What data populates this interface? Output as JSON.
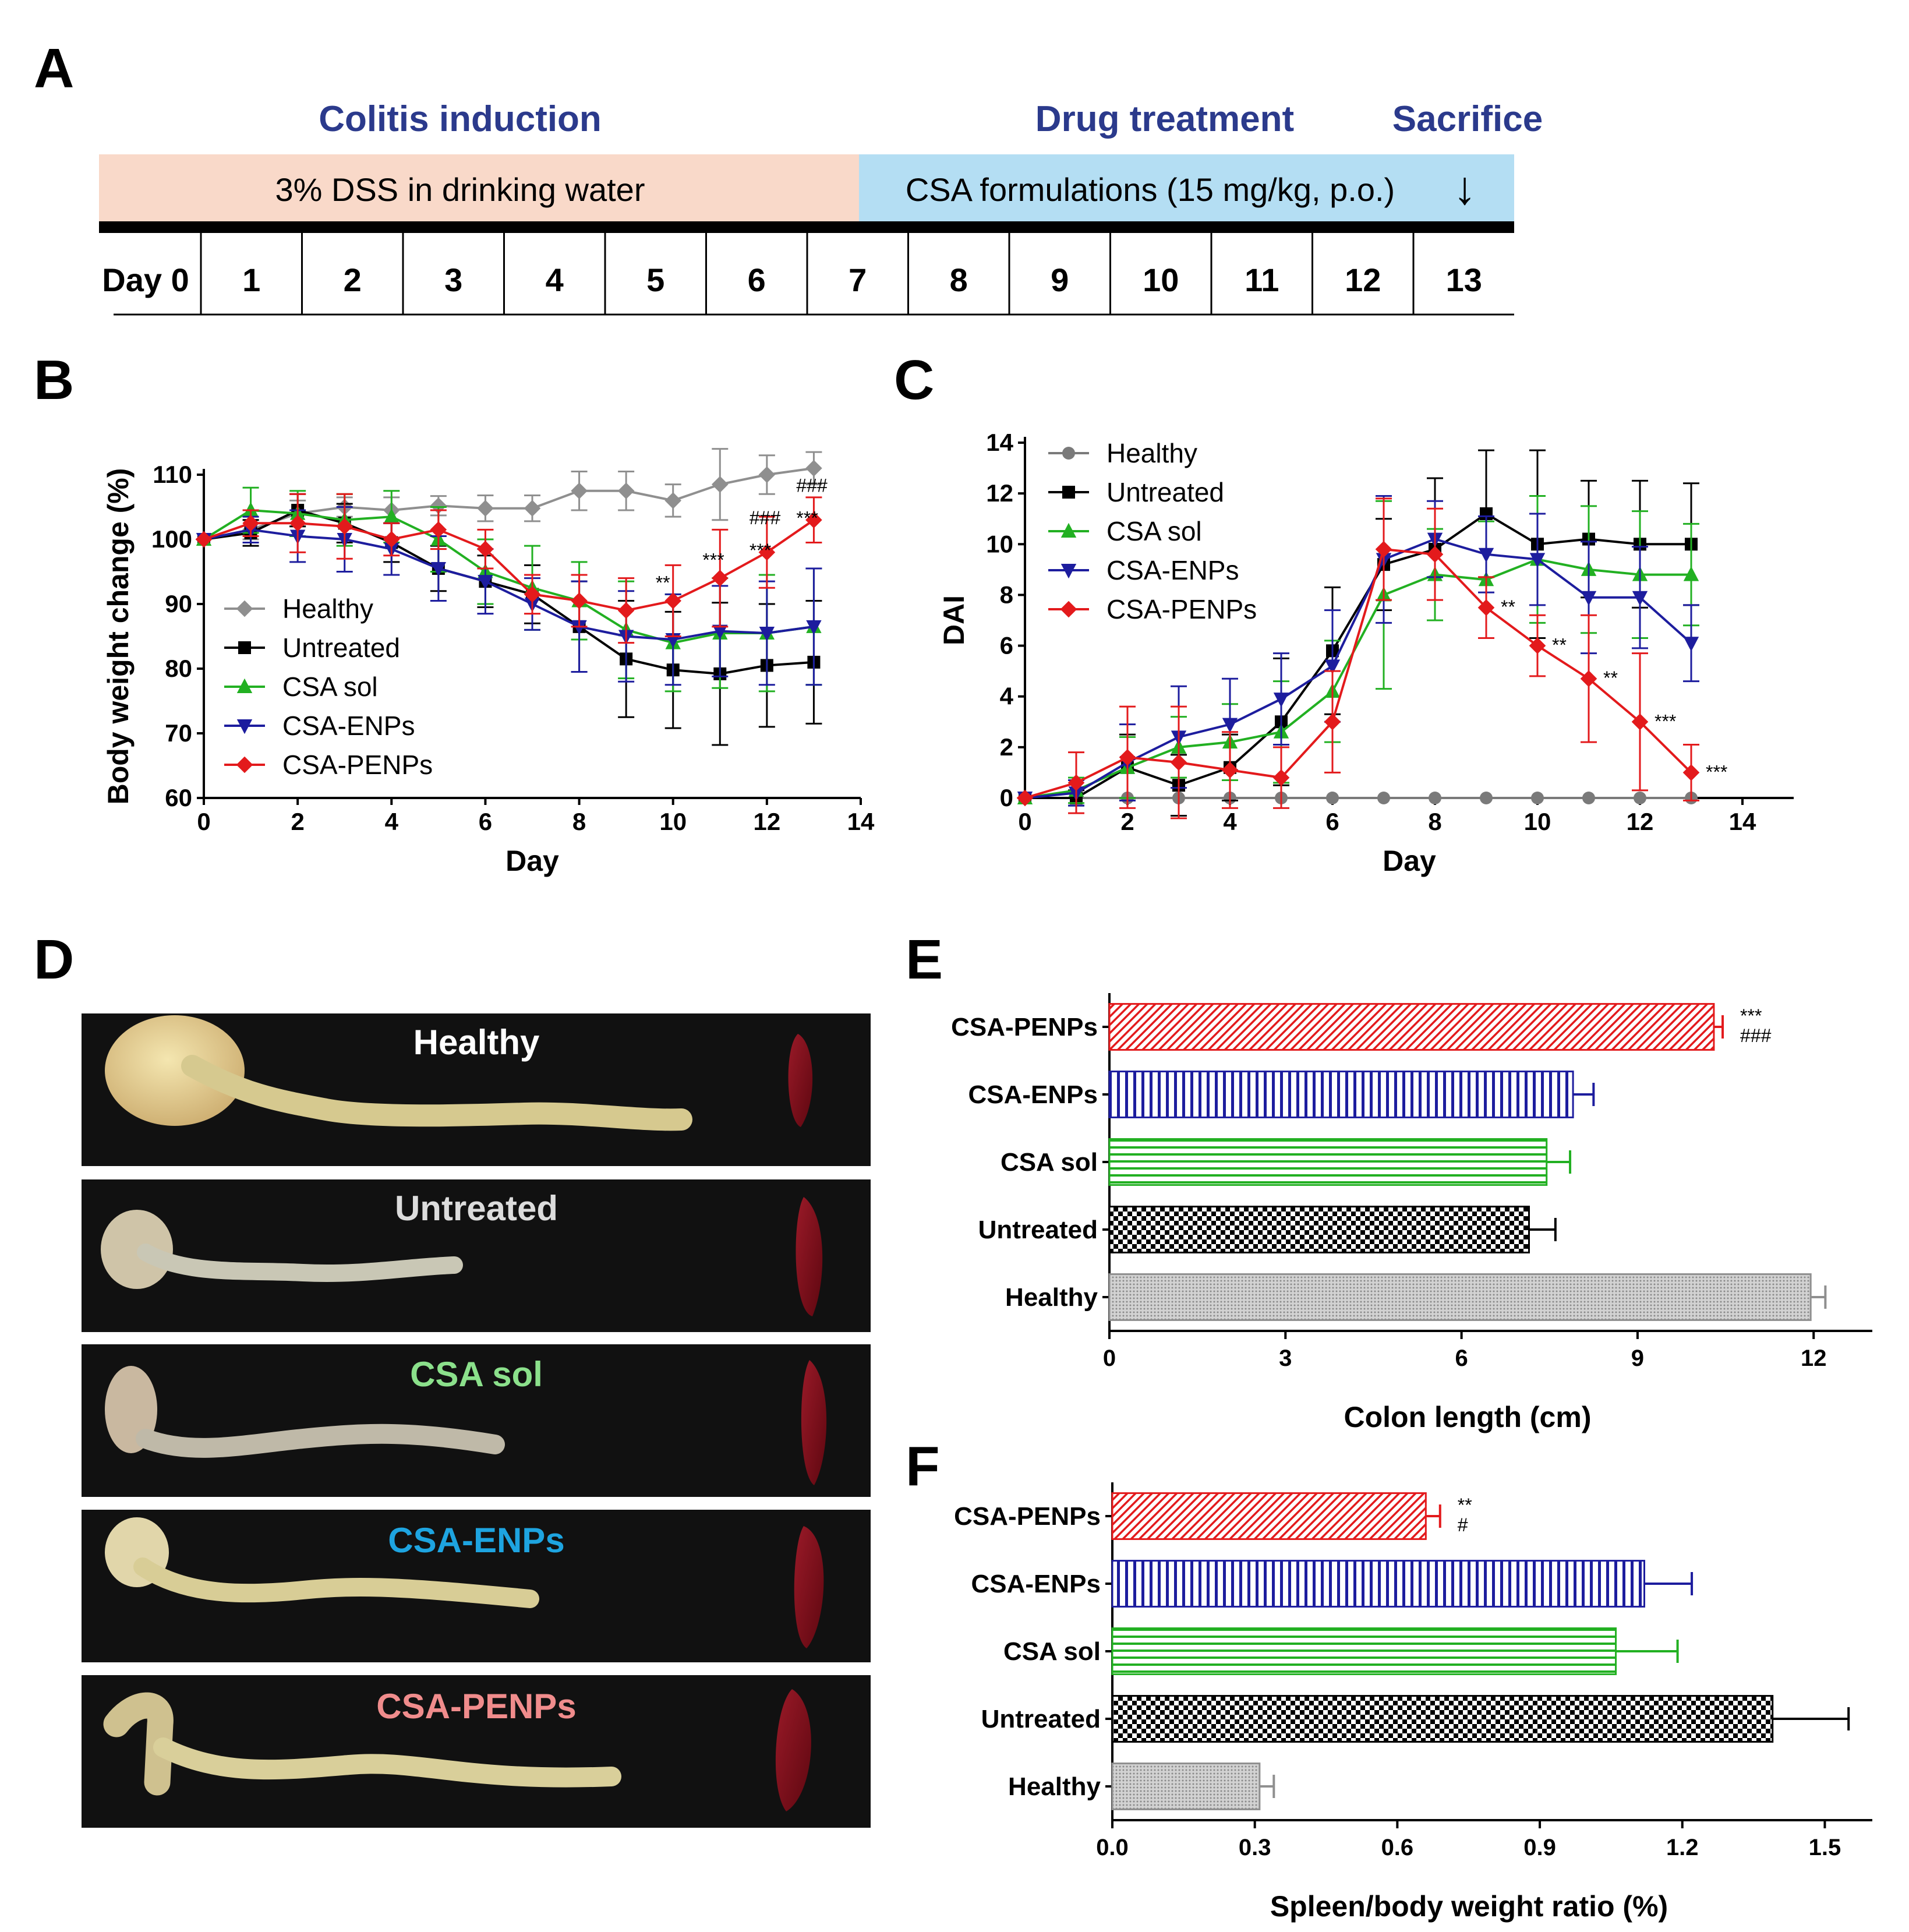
{
  "panels": {
    "A": "A",
    "B": "B",
    "C": "C",
    "D": "D",
    "E": "E",
    "F": "F"
  },
  "timeline": {
    "phase_colitis": "Colitis induction",
    "phase_drug": "Drug treatment",
    "phase_sacrifice": "Sacrifice",
    "bar_dss": "3% DSS in drinking water",
    "bar_csa": "CSA formulations (15 mg/kg, p.o.)",
    "arrow": "↓",
    "days": [
      "Day 0",
      "1",
      "2",
      "3",
      "4",
      "5",
      "6",
      "7",
      "8",
      "9",
      "10",
      "11",
      "12",
      "13"
    ],
    "colors": {
      "dss": "#f9d9c9",
      "csa": "#b4def3",
      "phase_text": "#2b3a8c"
    }
  },
  "photos": {
    "labels": [
      "Healthy",
      "Untreated",
      "CSA sol",
      "CSA-ENPs",
      "CSA-PENPs"
    ],
    "label_colors": [
      "#ffffff",
      "#dcdcdc",
      "#8be08b",
      "#1ea4e0",
      "#f08c8c"
    ]
  },
  "chart_data": [
    {
      "id": "B",
      "type": "line",
      "title": "",
      "xlabel": "Day",
      "ylabel": "Body weight change (%)",
      "xlim": [
        0,
        14
      ],
      "ylim": [
        60,
        110
      ],
      "xticks": [
        "0",
        "2",
        "4",
        "6",
        "8",
        "10",
        "12",
        "14"
      ],
      "yticks": [
        "60",
        "70",
        "80",
        "90",
        "100",
        "110"
      ],
      "legend_position": "bottom-left",
      "x": [
        0,
        1,
        2,
        3,
        4,
        5,
        6,
        7,
        8,
        9,
        10,
        11,
        12,
        13
      ],
      "series": [
        {
          "name": "Healthy",
          "marker": "diamond",
          "color": "#8f8f8f",
          "values": [
            100,
            101.5,
            104,
            105,
            104.5,
            105.2,
            104.8,
            104.8,
            107.5,
            107.5,
            106,
            108.5,
            110,
            111
          ],
          "errors": [
            0,
            1.5,
            2,
            1.5,
            2,
            1.5,
            2,
            2,
            3,
            3,
            2.5,
            5.5,
            3,
            2.5
          ]
        },
        {
          "name": "Untreated",
          "marker": "square",
          "color": "#000000",
          "values": [
            100,
            101,
            104.5,
            102.5,
            99.5,
            95.5,
            93.5,
            91.5,
            86.5,
            81.5,
            79.8,
            79.2,
            80.5,
            81
          ],
          "errors": [
            0,
            2,
            2.5,
            3,
            3,
            3.5,
            4,
            4.5,
            7,
            9,
            9,
            11,
            9.5,
            9.5
          ]
        },
        {
          "name": "CSA sol",
          "marker": "triangle-up",
          "color": "#22b022",
          "values": [
            100,
            104.5,
            104,
            103,
            103.5,
            100,
            95,
            92.5,
            90.5,
            86,
            84,
            85.5,
            85.5,
            86.5
          ],
          "errors": [
            0,
            3.5,
            3.5,
            4,
            4,
            5,
            5,
            6.5,
            6,
            7.5,
            7.5,
            8.5,
            9,
            9
          ]
        },
        {
          "name": "CSA-ENPs",
          "marker": "triangle-down",
          "color": "#1d1d9e",
          "values": [
            100,
            101.5,
            100.5,
            100,
            98.5,
            95.5,
            93.5,
            90,
            86.5,
            85,
            84.5,
            85.8,
            85.5,
            86.5
          ],
          "errors": [
            0,
            2,
            4,
            5,
            4,
            5,
            5,
            4,
            7,
            7,
            7,
            7,
            8,
            9
          ]
        },
        {
          "name": "CSA-PENPs",
          "marker": "diamond",
          "color": "#e31a1c",
          "values": [
            100,
            102.5,
            102.5,
            102,
            100,
            101.5,
            98.5,
            91.5,
            90.5,
            89,
            90.5,
            94,
            98,
            103
          ],
          "errors": [
            0,
            2,
            4.5,
            5,
            2.5,
            3,
            3,
            3,
            4,
            5,
            5.5,
            7.5,
            5.5,
            3.5
          ]
        }
      ],
      "annotations": [
        {
          "x": 10,
          "y": 90.5,
          "text": "**"
        },
        {
          "x": 11,
          "y": 94,
          "text": "***"
        },
        {
          "x": 12,
          "y": 98,
          "text": "###"
        },
        {
          "x": 12,
          "y": 98,
          "text": "***"
        },
        {
          "x": 13,
          "y": 103,
          "text": "###"
        },
        {
          "x": 13,
          "y": 103,
          "text": "***"
        }
      ]
    },
    {
      "id": "C",
      "type": "line",
      "title": "",
      "xlabel": "Day",
      "ylabel": "DAI",
      "xlim": [
        0,
        15
      ],
      "ylim": [
        0,
        14
      ],
      "xticks": [
        "0",
        "2",
        "4",
        "6",
        "8",
        "10",
        "12",
        "14"
      ],
      "yticks": [
        "0",
        "2",
        "4",
        "6",
        "8",
        "10",
        "12",
        "14"
      ],
      "legend_position": "top-left",
      "x": [
        0,
        1,
        2,
        3,
        4,
        5,
        6,
        7,
        8,
        9,
        10,
        11,
        12,
        13
      ],
      "series": [
        {
          "name": "Healthy",
          "marker": "circle",
          "color": "#7a7a7a",
          "values": [
            0,
            0,
            0,
            0,
            0,
            0,
            0,
            0,
            0,
            0,
            0,
            0,
            0,
            0
          ],
          "errors": [
            0,
            0,
            0,
            0,
            0,
            0,
            0,
            0,
            0,
            0,
            0,
            0,
            0,
            0
          ]
        },
        {
          "name": "Untreated",
          "marker": "square",
          "color": "#000000",
          "values": [
            0,
            0,
            1.2,
            0.5,
            1.2,
            3,
            5.8,
            9.2,
            9.8,
            11.2,
            10,
            10.2,
            10,
            10
          ],
          "errors": [
            0,
            0.3,
            1.3,
            1.2,
            1.3,
            2.5,
            2.5,
            1.8,
            2.8,
            2.5,
            3.7,
            2.3,
            2.5,
            2.4
          ]
        },
        {
          "name": "CSA sol",
          "marker": "triangle-up",
          "color": "#22b022",
          "values": [
            0,
            0.3,
            1.2,
            2,
            2.2,
            2.6,
            4.2,
            8,
            8.8,
            8.6,
            9.4,
            9,
            8.8,
            8.8
          ],
          "errors": [
            0,
            0.5,
            1.2,
            1.2,
            1.5,
            2,
            2,
            3.7,
            1.8,
            2.3,
            2.5,
            2.5,
            2.5,
            2
          ]
        },
        {
          "name": "CSA-ENPs",
          "marker": "triangle-down",
          "color": "#1d1d9e",
          "values": [
            0,
            0.2,
            1.4,
            2.4,
            2.9,
            3.9,
            5.2,
            9.4,
            10.2,
            9.6,
            9.4,
            7.9,
            7.9,
            6.1
          ],
          "errors": [
            0,
            0.5,
            1.5,
            2,
            1.8,
            1.8,
            2.2,
            2.5,
            1.5,
            1.5,
            1.8,
            2.2,
            2,
            1.5
          ]
        },
        {
          "name": "CSA-PENPs",
          "marker": "diamond",
          "color": "#e31a1c",
          "values": [
            0,
            0.6,
            1.6,
            1.4,
            1.1,
            0.8,
            3,
            9.8,
            9.6,
            7.5,
            6,
            4.7,
            3,
            1
          ],
          "errors": [
            0,
            1.2,
            2,
            2.2,
            1.5,
            1.2,
            2,
            2,
            1.8,
            1.2,
            1.2,
            2.5,
            2.7,
            1.1
          ]
        }
      ],
      "annotations": [
        {
          "x": 9,
          "y": 7.5,
          "text": "**"
        },
        {
          "x": 10,
          "y": 6,
          "text": "**"
        },
        {
          "x": 11,
          "y": 4.7,
          "text": "**"
        },
        {
          "x": 12,
          "y": 3,
          "text": "***"
        },
        {
          "x": 13,
          "y": 1,
          "text": "***"
        }
      ]
    },
    {
      "id": "E",
      "type": "bar",
      "orientation": "horizontal",
      "xlabel": "Colon length (cm)",
      "ylabel": "",
      "xlim": [
        0,
        13
      ],
      "xticks": [
        "0",
        "3",
        "6",
        "9",
        "12"
      ],
      "categories": [
        "CSA-PENPs",
        "CSA-ENPs",
        "CSA sol",
        "Untreated",
        "Healthy"
      ],
      "values": [
        10.3,
        7.9,
        7.45,
        7.15,
        11.95
      ],
      "errors": [
        0.15,
        0.35,
        0.4,
        0.45,
        0.25
      ],
      "patterns": [
        "diagonal",
        "vertical",
        "horizontal",
        "checker",
        "dots"
      ],
      "colors": [
        "#e31a1c",
        "#1d1d9e",
        "#22b022",
        "#000000",
        "#8f8f8f"
      ],
      "annotations": [
        {
          "category": "CSA-PENPs",
          "text": "***"
        },
        {
          "category": "CSA-PENPs",
          "text": "###"
        }
      ]
    },
    {
      "id": "F",
      "type": "bar",
      "orientation": "horizontal",
      "xlabel": "Spleen/body weight ratio (%)",
      "ylabel": "",
      "xlim": [
        0,
        1.6
      ],
      "xticks": [
        "0.0",
        "0.3",
        "0.6",
        "0.9",
        "1.2",
        "1.5"
      ],
      "categories": [
        "CSA-PENPs",
        "CSA-ENPs",
        "CSA sol",
        "Untreated",
        "Healthy"
      ],
      "values": [
        0.66,
        1.12,
        1.06,
        1.39,
        0.31
      ],
      "errors": [
        0.03,
        0.1,
        0.13,
        0.16,
        0.03
      ],
      "patterns": [
        "diagonal",
        "vertical",
        "horizontal",
        "checker",
        "dots"
      ],
      "colors": [
        "#e31a1c",
        "#1d1d9e",
        "#22b022",
        "#000000",
        "#8f8f8f"
      ],
      "annotations": [
        {
          "category": "CSA-PENPs",
          "text": "**"
        },
        {
          "category": "CSA-PENPs",
          "text": "#"
        }
      ]
    }
  ]
}
